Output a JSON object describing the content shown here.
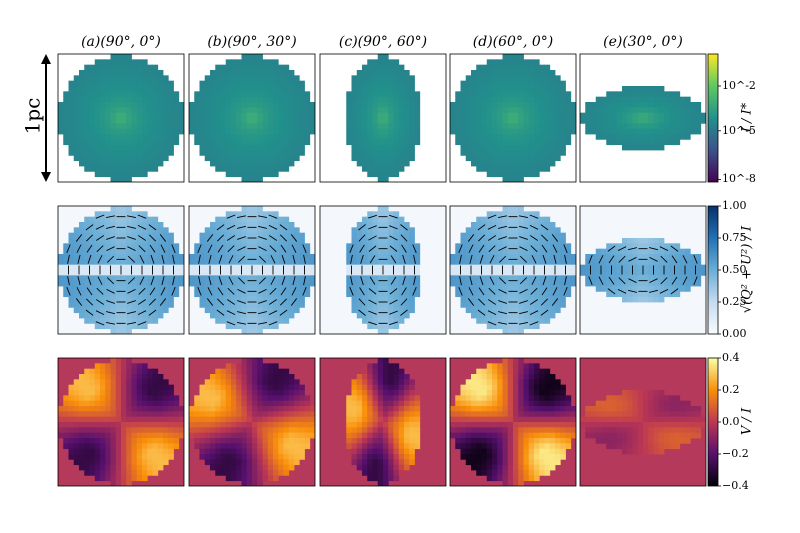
{
  "chart_data": {
    "type": "heatmap",
    "panel_titles": [
      "(a)(90°, 0°)",
      "(b)(90°, 30°)",
      "(c)(90°, 60°)",
      "(d)(60°, 0°)",
      "(e)(30°, 0°)"
    ],
    "scale_bar_label": "1pc",
    "rows": [
      {
        "quantity": "intensity",
        "colorbar_label": "I / I*",
        "colormap": "viridis",
        "colorbar_scale": "log",
        "colorbar_ticks": [
          "10^-2",
          "10^-5",
          "10^-8"
        ]
      },
      {
        "quantity": "linear polarization fraction",
        "colorbar_label": "√(Q² + U²) / I",
        "colormap": "blues",
        "colorbar_range": [
          0.0,
          1.0
        ],
        "colorbar_ticks": [
          "1.00",
          "0.75",
          "0.50",
          "0.25",
          "0.00"
        ],
        "polarization_vectors": true
      },
      {
        "quantity": "circular polarization fraction",
        "colorbar_label": "V / I",
        "colormap": "inferno",
        "colorbar_range": [
          -0.4,
          0.4
        ],
        "colorbar_ticks": [
          "0.4",
          "0.2",
          "0.0",
          "−0.2",
          "−0.4"
        ]
      }
    ],
    "panels": [
      {
        "inclination_deg": 90,
        "azimuth_deg": 0,
        "aspect": 1.0
      },
      {
        "inclination_deg": 90,
        "azimuth_deg": 30,
        "aspect": 1.0
      },
      {
        "inclination_deg": 90,
        "azimuth_deg": 60,
        "aspect": 0.62
      },
      {
        "inclination_deg": 60,
        "azimuth_deg": 0,
        "aspect": 1.0
      },
      {
        "inclination_deg": 30,
        "azimuth_deg": 0,
        "aspect": 0.5
      }
    ]
  },
  "colors": {
    "background": "#ffffff",
    "frame": "#000000",
    "v_outside": "#b5395b",
    "p_outside": "#f4f8fd"
  }
}
